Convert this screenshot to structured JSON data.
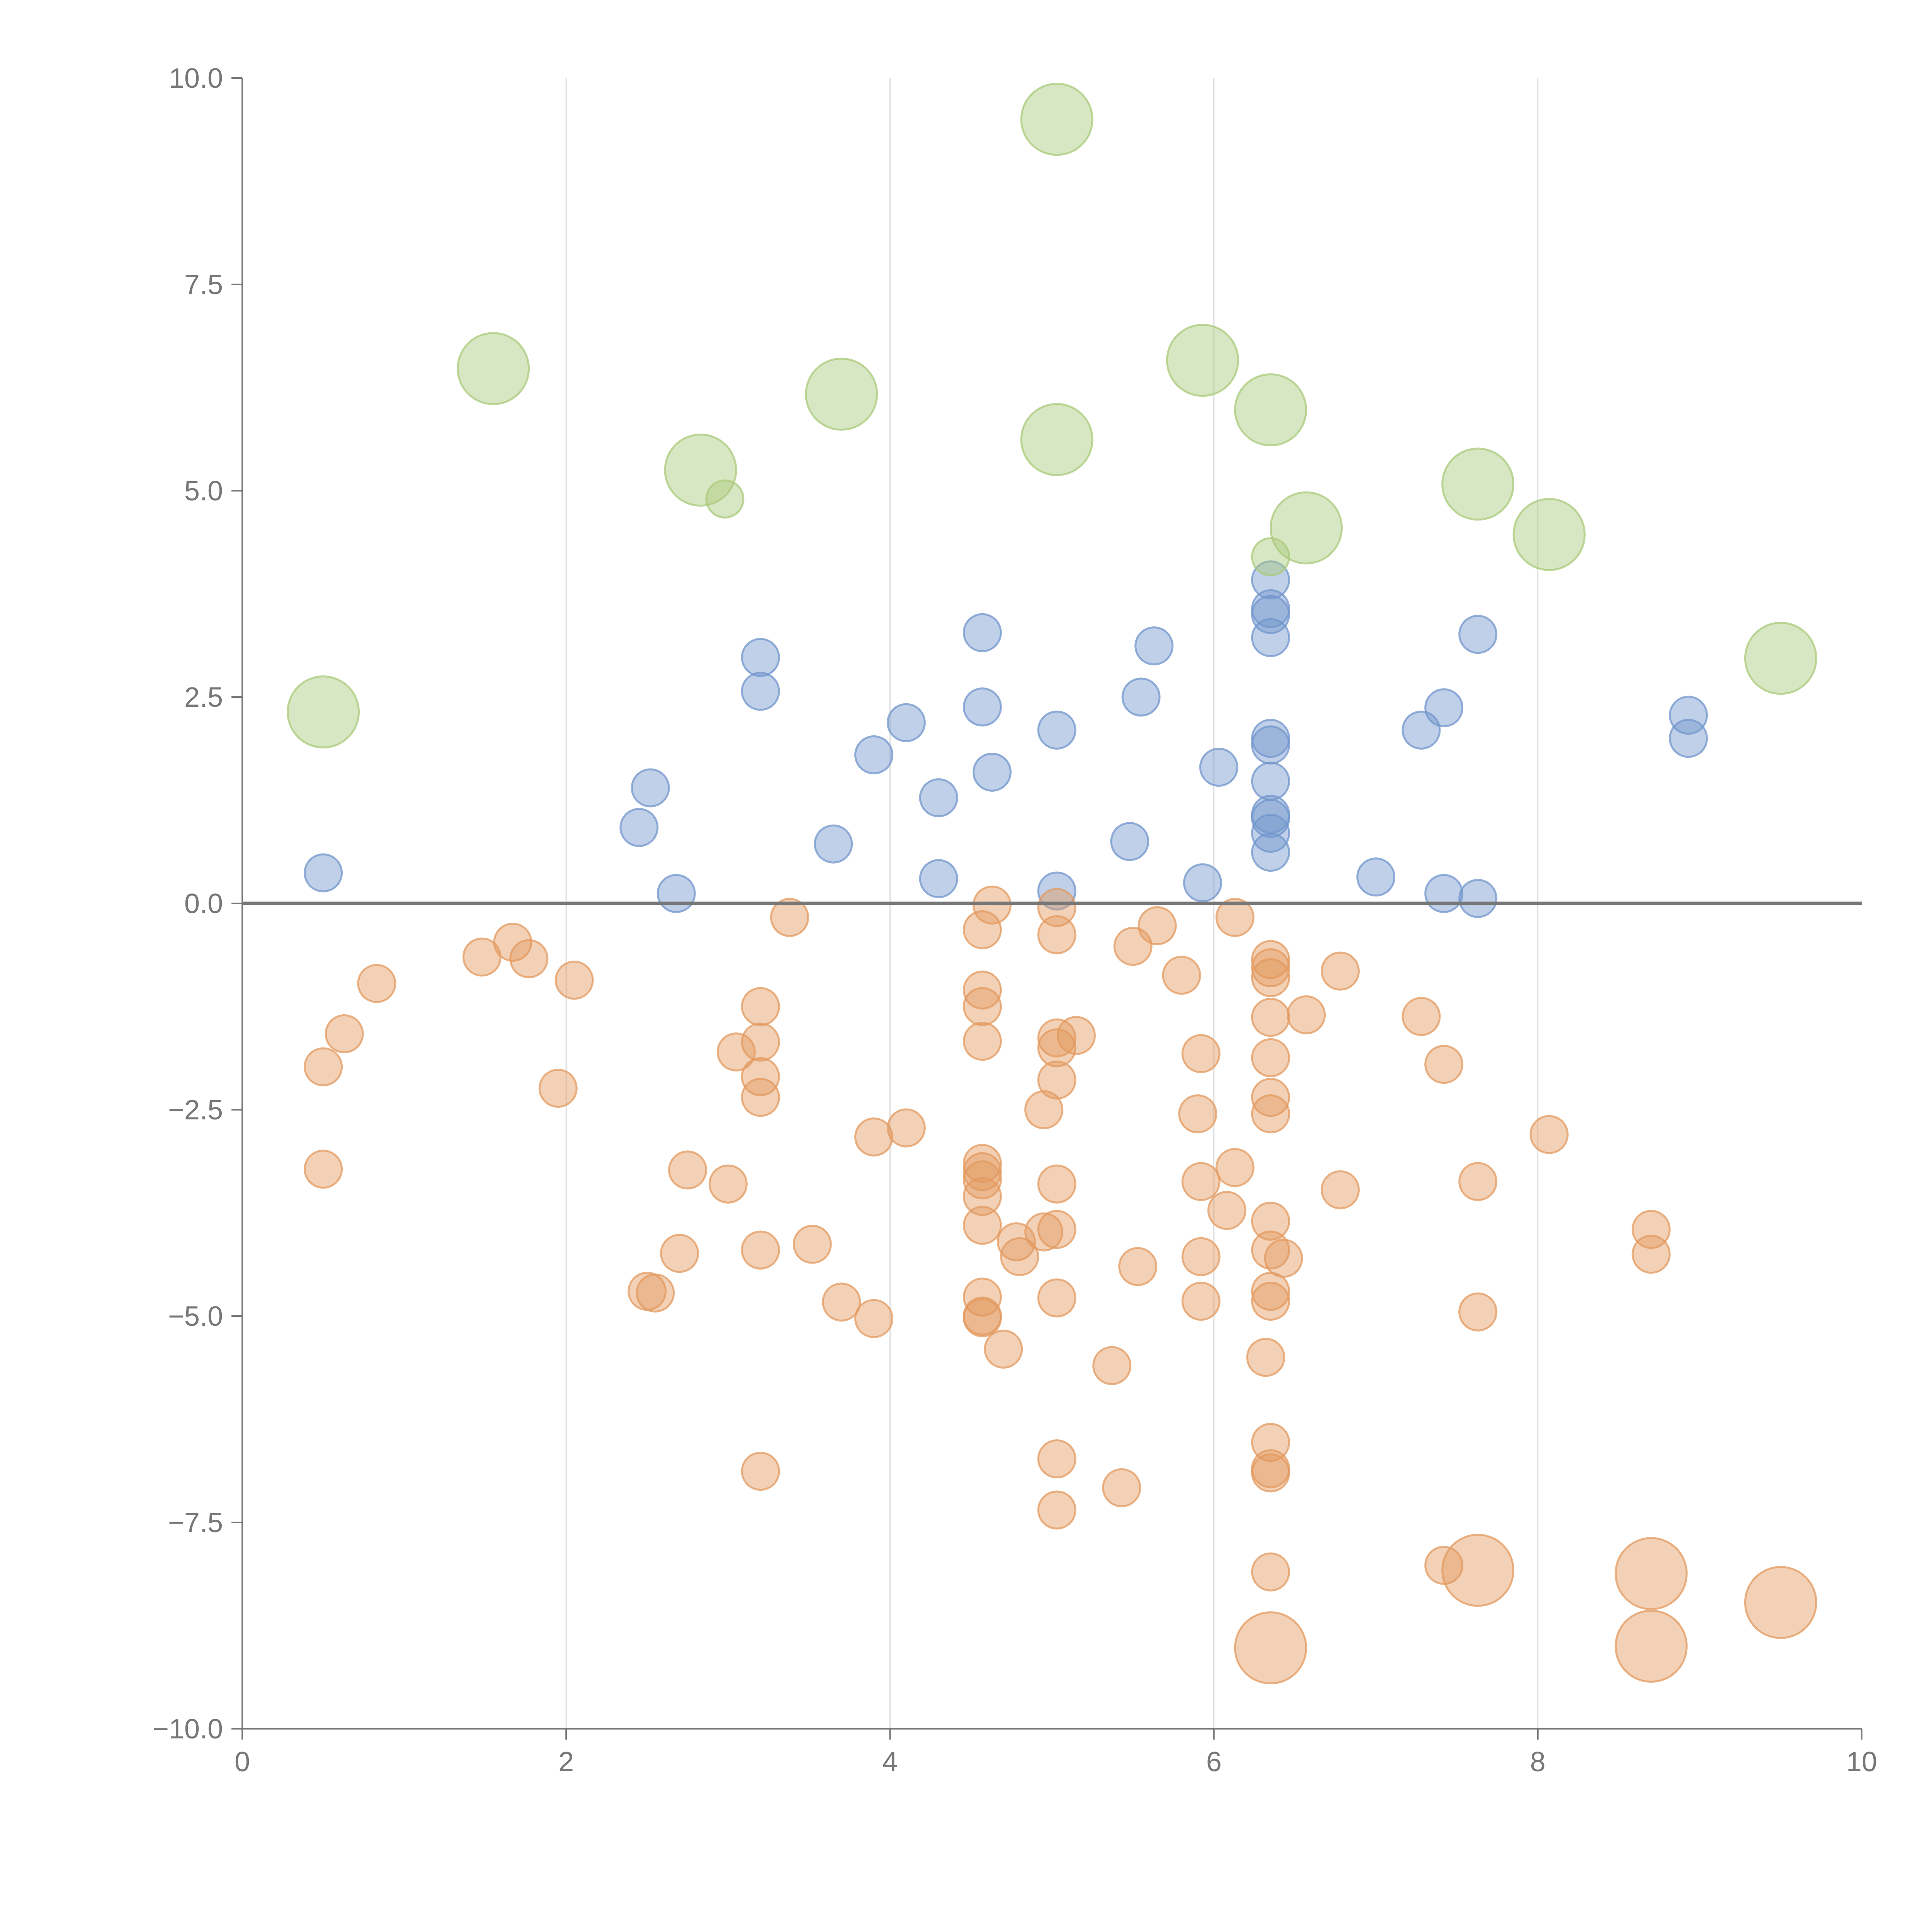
{
  "chart_data": {
    "type": "scatter",
    "title": "",
    "xlabel": "",
    "ylabel": "",
    "xlim": [
      0,
      10
    ],
    "ylim": [
      -10,
      10
    ],
    "x_ticks": [
      0,
      2,
      4,
      6,
      8,
      10
    ],
    "x_tick_labels": [
      "0",
      "2",
      "4",
      "6",
      "8",
      "10"
    ],
    "y_ticks": [
      -10,
      -7.5,
      -5,
      -2.5,
      0,
      2.5,
      5,
      7.5,
      10
    ],
    "y_tick_labels": [
      "−10.0",
      "−7.5",
      "−5.0",
      "−2.5",
      "0.0",
      "2.5",
      "5.0",
      "7.5",
      "10.0"
    ],
    "grid": "vertical lines at x ticks",
    "zero_line": true,
    "legend": "none",
    "colors": {
      "blue_series": "#7196cc",
      "orange_series": "#e39a5f",
      "green_series": "#a9c97a",
      "axis": "#777777",
      "grid": "#dddddd"
    },
    "series": [
      {
        "color": "#7196cc",
        "marker": "small circle",
        "points": [
          [
            0.5,
            0.37
          ],
          [
            2.45,
            0.92
          ],
          [
            2.52,
            1.4
          ],
          [
            2.68,
            0.12
          ],
          [
            3.2,
            2.98
          ],
          [
            3.2,
            2.57
          ],
          [
            3.65,
            0.72
          ],
          [
            3.9,
            1.8
          ],
          [
            4.1,
            2.19
          ],
          [
            4.3,
            1.28
          ],
          [
            4.3,
            0.3
          ],
          [
            4.57,
            3.28
          ],
          [
            4.57,
            2.38
          ],
          [
            4.63,
            1.59
          ],
          [
            5.03,
            2.1
          ],
          [
            5.03,
            0.15
          ],
          [
            5.48,
            0.75
          ],
          [
            5.55,
            2.5
          ],
          [
            5.63,
            3.12
          ],
          [
            5.93,
            0.25
          ],
          [
            6.03,
            1.65
          ],
          [
            6.35,
            3.92
          ],
          [
            6.35,
            3.57
          ],
          [
            6.35,
            3.5
          ],
          [
            6.35,
            3.22
          ],
          [
            6.35,
            2.0
          ],
          [
            6.35,
            1.92
          ],
          [
            6.35,
            1.48
          ],
          [
            6.35,
            1.08
          ],
          [
            6.35,
            1.03
          ],
          [
            6.35,
            0.85
          ],
          [
            6.35,
            0.62
          ],
          [
            7.0,
            0.32
          ],
          [
            7.28,
            2.1
          ],
          [
            7.42,
            2.37
          ],
          [
            7.42,
            0.12
          ],
          [
            7.63,
            3.26
          ],
          [
            7.63,
            0.06
          ],
          [
            8.93,
            2.28
          ],
          [
            8.93,
            2.0
          ]
        ]
      },
      {
        "color": "#e39a5f",
        "marker": "small circle",
        "points": [
          [
            0.5,
            -1.98
          ],
          [
            0.5,
            -3.22
          ],
          [
            0.63,
            -1.58
          ],
          [
            0.83,
            -0.97
          ],
          [
            1.48,
            -0.65
          ],
          [
            1.67,
            -0.47
          ],
          [
            1.77,
            -0.67
          ],
          [
            1.95,
            -2.24
          ],
          [
            2.05,
            -0.93
          ],
          [
            2.5,
            -4.7
          ],
          [
            2.55,
            -4.72
          ],
          [
            2.7,
            -4.24
          ],
          [
            2.75,
            -3.23
          ],
          [
            3.0,
            -3.4
          ],
          [
            3.05,
            -1.8
          ],
          [
            3.2,
            -1.25
          ],
          [
            3.2,
            -1.68
          ],
          [
            3.2,
            -2.1
          ],
          [
            3.2,
            -2.35
          ],
          [
            3.2,
            -4.2
          ],
          [
            3.2,
            -6.88
          ],
          [
            3.38,
            -0.17
          ],
          [
            3.52,
            -4.13
          ],
          [
            3.7,
            -4.83
          ],
          [
            3.9,
            -2.83
          ],
          [
            3.9,
            -5.03
          ],
          [
            4.1,
            -2.72
          ],
          [
            4.57,
            -0.32
          ],
          [
            4.57,
            -1.05
          ],
          [
            4.57,
            -1.25
          ],
          [
            4.57,
            -1.67
          ],
          [
            4.57,
            -3.15
          ],
          [
            4.57,
            -3.25
          ],
          [
            4.57,
            -3.35
          ],
          [
            4.57,
            -3.55
          ],
          [
            4.57,
            -3.9
          ],
          [
            4.57,
            -4.77
          ],
          [
            4.57,
            -5.0
          ],
          [
            4.57,
            -5.02
          ],
          [
            4.63,
            -0.02
          ],
          [
            4.7,
            -5.4
          ],
          [
            4.78,
            -4.1
          ],
          [
            4.8,
            -4.28
          ],
          [
            4.95,
            -2.5
          ],
          [
            4.95,
            -3.98
          ],
          [
            5.03,
            -0.05
          ],
          [
            5.03,
            -0.38
          ],
          [
            5.03,
            -1.63
          ],
          [
            5.03,
            -1.75
          ],
          [
            5.03,
            -2.14
          ],
          [
            5.03,
            -3.4
          ],
          [
            5.03,
            -3.95
          ],
          [
            5.03,
            -4.78
          ],
          [
            5.03,
            -6.73
          ],
          [
            5.03,
            -7.35
          ],
          [
            5.15,
            -1.6
          ],
          [
            5.37,
            -5.6
          ],
          [
            5.43,
            -7.08
          ],
          [
            5.5,
            -0.52
          ],
          [
            5.53,
            -4.4
          ],
          [
            5.65,
            -0.27
          ],
          [
            5.8,
            -0.87
          ],
          [
            5.9,
            -2.55
          ],
          [
            5.92,
            -1.82
          ],
          [
            5.92,
            -3.37
          ],
          [
            5.92,
            -4.28
          ],
          [
            5.92,
            -4.82
          ],
          [
            6.08,
            -3.72
          ],
          [
            6.13,
            -0.17
          ],
          [
            6.13,
            -3.2
          ],
          [
            6.32,
            -5.5
          ],
          [
            6.35,
            -0.68
          ],
          [
            6.35,
            -0.78
          ],
          [
            6.35,
            -0.9
          ],
          [
            6.35,
            -1.38
          ],
          [
            6.35,
            -1.87
          ],
          [
            6.35,
            -2.35
          ],
          [
            6.35,
            -2.55
          ],
          [
            6.35,
            -3.85
          ],
          [
            6.35,
            -4.2
          ],
          [
            6.35,
            -4.7
          ],
          [
            6.35,
            -4.82
          ],
          [
            6.35,
            -6.53
          ],
          [
            6.35,
            -6.85
          ],
          [
            6.35,
            -6.9
          ],
          [
            6.35,
            -8.1
          ],
          [
            6.43,
            -4.3
          ],
          [
            6.57,
            -1.35
          ],
          [
            6.78,
            -0.82
          ],
          [
            6.78,
            -3.47
          ],
          [
            7.28,
            -1.37
          ],
          [
            7.42,
            -1.95
          ],
          [
            7.42,
            -8.02
          ],
          [
            7.63,
            -3.37
          ],
          [
            7.63,
            -4.95
          ],
          [
            8.07,
            -2.8
          ],
          [
            8.7,
            -3.95
          ],
          [
            8.7,
            -4.25
          ]
        ]
      },
      {
        "color": "#e39a5f",
        "marker": "large circle",
        "points": [
          [
            6.35,
            -9.02
          ],
          [
            7.63,
            -8.08
          ],
          [
            8.7,
            -8.12
          ],
          [
            8.7,
            -9.0
          ],
          [
            9.5,
            -8.47
          ]
        ]
      },
      {
        "color": "#a9c97a",
        "marker": "large circle",
        "points": [
          [
            0.5,
            2.32
          ],
          [
            1.55,
            6.48
          ],
          [
            2.83,
            5.25
          ],
          [
            3.7,
            6.17
          ],
          [
            5.03,
            9.5
          ],
          [
            5.03,
            5.62
          ],
          [
            5.93,
            6.58
          ],
          [
            6.35,
            5.98
          ],
          [
            6.57,
            4.55
          ],
          [
            7.63,
            5.08
          ],
          [
            8.07,
            4.47
          ],
          [
            9.5,
            2.97
          ]
        ]
      },
      {
        "color": "#a9c97a",
        "marker": "small circle",
        "points": [
          [
            2.98,
            4.9
          ],
          [
            6.35,
            4.2
          ]
        ]
      }
    ]
  }
}
